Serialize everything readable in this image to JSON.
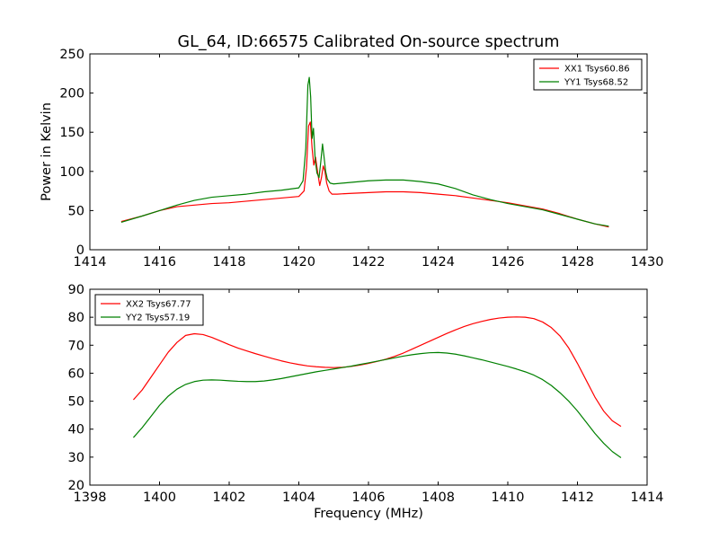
{
  "chart_data": [
    {
      "type": "line",
      "title": "GL_64, ID:66575 Calibrated On-source spectrum",
      "xlabel": "",
      "ylabel": "Power in Kelvin",
      "xlim": [
        1414,
        1430
      ],
      "ylim": [
        0,
        250
      ],
      "xticks": [
        1414,
        1416,
        1418,
        1420,
        1422,
        1424,
        1426,
        1428,
        1430
      ],
      "yticks": [
        0,
        50,
        100,
        150,
        200,
        250
      ],
      "xtick_labels": [
        "1414",
        "1416",
        "1418",
        "1420",
        "1422",
        "1424",
        "1426",
        "1428",
        "1430"
      ],
      "ytick_labels": [
        "0",
        "50",
        "100",
        "150",
        "200",
        "250"
      ],
      "grid": false,
      "legend_position": "top-right",
      "series": [
        {
          "name": "XX1 Tsys60.86",
          "color": "#ff0000",
          "x": [
            1414.9,
            1415.5,
            1416.0,
            1416.5,
            1417.0,
            1417.5,
            1418.0,
            1418.5,
            1419.0,
            1419.5,
            1420.0,
            1420.15,
            1420.22,
            1420.28,
            1420.33,
            1420.38,
            1420.43,
            1420.48,
            1420.55,
            1420.6,
            1420.65,
            1420.7,
            1420.75,
            1420.8,
            1420.87,
            1420.95,
            1421.1,
            1421.5,
            1422.0,
            1422.5,
            1423.0,
            1423.5,
            1424.0,
            1424.5,
            1425.0,
            1425.5,
            1426.0,
            1426.5,
            1427.0,
            1427.5,
            1428.0,
            1428.5,
            1428.9
          ],
          "y": [
            36,
            43,
            50,
            55,
            57,
            59,
            60,
            62,
            64,
            66,
            68,
            75,
            105,
            158,
            163,
            130,
            108,
            118,
            96,
            82,
            92,
            107,
            100,
            85,
            75,
            71,
            71,
            72,
            73,
            74,
            74,
            73,
            71,
            69,
            66,
            63,
            60,
            56,
            52,
            46,
            39,
            33,
            29
          ]
        },
        {
          "name": "YY1 Tsys68.52",
          "color": "#008000",
          "x": [
            1414.9,
            1415.5,
            1416.0,
            1416.5,
            1417.0,
            1417.5,
            1418.0,
            1418.5,
            1419.0,
            1419.5,
            1420.0,
            1420.12,
            1420.2,
            1420.26,
            1420.3,
            1420.34,
            1420.38,
            1420.42,
            1420.47,
            1420.52,
            1420.58,
            1420.63,
            1420.68,
            1420.72,
            1420.77,
            1420.82,
            1420.9,
            1421.0,
            1421.5,
            1422.0,
            1422.5,
            1423.0,
            1423.5,
            1424.0,
            1424.5,
            1425.0,
            1425.5,
            1426.0,
            1426.5,
            1427.0,
            1427.5,
            1428.0,
            1428.5,
            1428.9
          ],
          "y": [
            35,
            43,
            50,
            57,
            63,
            67,
            69,
            71,
            74,
            76,
            79,
            88,
            130,
            210,
            220,
            195,
            142,
            155,
            115,
            98,
            92,
            112,
            135,
            120,
            100,
            90,
            85,
            84,
            86,
            88,
            89,
            89,
            87,
            84,
            78,
            70,
            64,
            59,
            55,
            51,
            45,
            39,
            33,
            30
          ]
        }
      ]
    },
    {
      "type": "line",
      "title": "",
      "xlabel": "Frequency (MHz)",
      "ylabel": "",
      "xlim": [
        1398,
        1414
      ],
      "ylim": [
        20,
        90
      ],
      "xticks": [
        1398,
        1400,
        1402,
        1404,
        1406,
        1408,
        1410,
        1412,
        1414
      ],
      "yticks": [
        20,
        30,
        40,
        50,
        60,
        70,
        80,
        90
      ],
      "xtick_labels": [
        "1398",
        "1400",
        "1402",
        "1404",
        "1406",
        "1408",
        "1410",
        "1412",
        "1414"
      ],
      "ytick_labels": [
        "20",
        "30",
        "40",
        "50",
        "60",
        "70",
        "80",
        "90"
      ],
      "grid": false,
      "legend_position": "top-left",
      "series": [
        {
          "name": "XX2 Tsys67.77",
          "color": "#ff0000",
          "x": [
            1399.25,
            1399.5,
            1399.75,
            1400.0,
            1400.25,
            1400.5,
            1400.75,
            1401.0,
            1401.25,
            1401.5,
            1401.75,
            1402.0,
            1402.25,
            1402.5,
            1402.75,
            1403.0,
            1403.25,
            1403.5,
            1403.75,
            1404.0,
            1404.25,
            1404.5,
            1404.75,
            1405.0,
            1405.25,
            1405.5,
            1405.75,
            1406.0,
            1406.25,
            1406.5,
            1406.75,
            1407.0,
            1407.25,
            1407.5,
            1407.75,
            1408.0,
            1408.25,
            1408.5,
            1408.75,
            1409.0,
            1409.25,
            1409.5,
            1409.75,
            1410.0,
            1410.25,
            1410.5,
            1410.75,
            1411.0,
            1411.25,
            1411.5,
            1411.75,
            1412.0,
            1412.25,
            1412.5,
            1412.75,
            1413.0,
            1413.25
          ],
          "y": [
            50.5,
            54,
            58.5,
            63,
            67.5,
            71,
            73.5,
            74.1,
            73.8,
            72.8,
            71.5,
            70.2,
            69,
            68,
            67,
            66.1,
            65.2,
            64.4,
            63.7,
            63.1,
            62.6,
            62.3,
            62.1,
            62,
            62.1,
            62.4,
            62.9,
            63.5,
            64.2,
            65,
            66,
            67.2,
            68.6,
            70,
            71.4,
            72.8,
            74.2,
            75.5,
            76.7,
            77.7,
            78.5,
            79.2,
            79.7,
            80,
            80.1,
            80,
            79.5,
            78.3,
            76.3,
            73.3,
            69,
            63.5,
            57.5,
            51.5,
            46.5,
            43,
            41
          ]
        },
        {
          "name": "YY2 Tsys57.19",
          "color": "#008000",
          "x": [
            1399.25,
            1399.5,
            1399.75,
            1400.0,
            1400.25,
            1400.5,
            1400.75,
            1401.0,
            1401.25,
            1401.5,
            1401.75,
            1402.0,
            1402.25,
            1402.5,
            1402.75,
            1403.0,
            1403.25,
            1403.5,
            1403.75,
            1404.0,
            1404.25,
            1404.5,
            1404.75,
            1405.0,
            1405.25,
            1405.5,
            1405.75,
            1406.0,
            1406.25,
            1406.5,
            1406.75,
            1407.0,
            1407.25,
            1407.5,
            1407.75,
            1408.0,
            1408.25,
            1408.5,
            1408.75,
            1409.0,
            1409.25,
            1409.5,
            1409.75,
            1410.0,
            1410.25,
            1410.5,
            1410.75,
            1411.0,
            1411.25,
            1411.5,
            1411.75,
            1412.0,
            1412.25,
            1412.5,
            1412.75,
            1413.0,
            1413.25
          ],
          "y": [
            37,
            40.5,
            44.5,
            48.5,
            51.8,
            54.3,
            56,
            57,
            57.5,
            57.6,
            57.5,
            57.3,
            57.1,
            57,
            57,
            57.2,
            57.6,
            58.1,
            58.7,
            59.3,
            59.9,
            60.5,
            61,
            61.5,
            62,
            62.5,
            63.1,
            63.7,
            64.3,
            64.9,
            65.5,
            66.1,
            66.6,
            67,
            67.3,
            67.4,
            67.2,
            66.8,
            66.2,
            65.5,
            64.8,
            64,
            63.2,
            62.4,
            61.5,
            60.5,
            59.3,
            57.7,
            55.6,
            53,
            50,
            46.5,
            42.5,
            38.5,
            35,
            32,
            29.8
          ]
        }
      ]
    }
  ]
}
